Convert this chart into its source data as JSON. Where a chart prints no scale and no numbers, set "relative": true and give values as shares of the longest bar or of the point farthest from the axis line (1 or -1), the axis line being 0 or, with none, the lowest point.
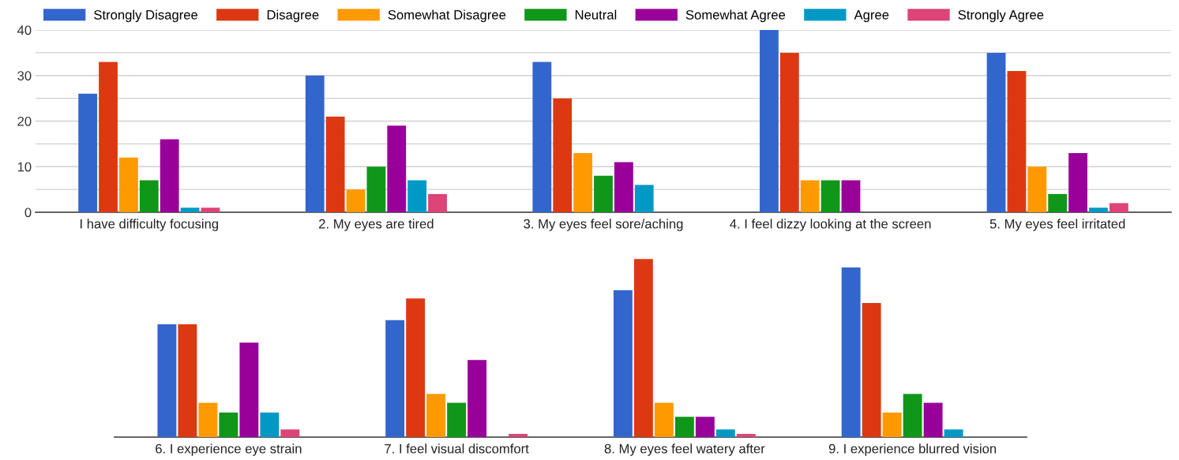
{
  "chart_data": [
    {
      "type": "bar",
      "categories": [
        "I have difficulty focusing",
        "2. My eyes are tired",
        "3. My eyes feel sore/aching",
        "4. I feel dizzy looking at the screen",
        "5. My eyes feel irritated"
      ],
      "series": [
        {
          "name": "Strongly Disagree",
          "color": "#3366cc",
          "values": [
            26,
            30,
            33,
            40,
            35
          ]
        },
        {
          "name": "Disagree",
          "color": "#dc3912",
          "values": [
            33,
            21,
            25,
            35,
            31
          ]
        },
        {
          "name": "Somewhat Disagree",
          "color": "#ff9900",
          "values": [
            12,
            5,
            13,
            7,
            10
          ]
        },
        {
          "name": "Neutral",
          "color": "#109618",
          "values": [
            7,
            10,
            8,
            7,
            4
          ]
        },
        {
          "name": "Somewhat Agree",
          "color": "#990099",
          "values": [
            16,
            19,
            11,
            7,
            13
          ]
        },
        {
          "name": "Agree",
          "color": "#0099c6",
          "values": [
            1,
            7,
            6,
            0,
            1
          ]
        },
        {
          "name": "Strongly Agree",
          "color": "#dd4477",
          "values": [
            1,
            4,
            0,
            0,
            2
          ]
        }
      ],
      "ylim": [
        0,
        40
      ],
      "yticks": [
        0,
        {
          "value": 5,
          "label": null
        },
        10,
        {
          "value": 15,
          "label": null
        },
        20,
        {
          "value": 25,
          "label": null
        },
        30,
        {
          "value": 35,
          "label": null
        },
        40
      ],
      "grid": "y",
      "legend": "top"
    },
    {
      "type": "bar",
      "relative": true,
      "categories": [
        "6. I experience eye strain",
        "7. I feel visual discomfort",
        "8. My eyes feel watery after",
        "9. I experience blurred vision"
      ],
      "series": [
        {
          "color": "#3366cc",
          "values": [
            0.633,
            0.656,
            0.825,
            0.952
          ]
        },
        {
          "color": "#dc3912",
          "values": [
            0.633,
            0.778,
            1,
            0.753
          ]
        },
        {
          "color": "#ff9900",
          "values": [
            0.193,
            0.242,
            0.193,
            0.138
          ]
        },
        {
          "color": "#109618",
          "values": [
            0.138,
            0.193,
            0.114,
            0.242
          ]
        },
        {
          "color": "#990099",
          "values": [
            0.53,
            0.433,
            0.114,
            0.193
          ]
        },
        {
          "color": "#0099c6",
          "values": [
            0.138,
            0,
            0.043,
            0.043
          ]
        },
        {
          "color": "#dd4477",
          "values": [
            0.043,
            0.018,
            0.018,
            0
          ]
        }
      ]
    }
  ]
}
